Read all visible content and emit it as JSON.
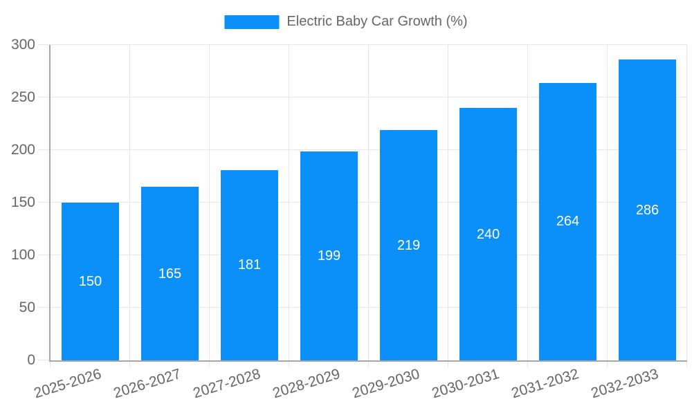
{
  "chart_data": {
    "type": "bar",
    "title": "Electric Baby Car Growth (%)",
    "legend": [
      "Electric Baby Car Growth (%)"
    ],
    "legend_position": "top",
    "categories": [
      "2025-2026",
      "2026-2027",
      "2027-2028",
      "2028-2029",
      "2029-2030",
      "2030-2031",
      "2031-2032",
      "2032-2033"
    ],
    "values": [
      150,
      165,
      181,
      199,
      219,
      240,
      264,
      286
    ],
    "xlabel": "",
    "ylabel": "",
    "ylim": [
      0,
      300
    ],
    "y_ticks": [
      0,
      50,
      100,
      150,
      200,
      250,
      300
    ],
    "grid": true,
    "x_label_rotation_deg": -17,
    "value_labels": "inside-center",
    "colors": {
      "bar": "#0a90f8",
      "value_label": "#ffffff",
      "axis_text": "#666666",
      "grid_line": "#e5e5e5",
      "axis_line": "#a6a6a6",
      "background": "#ffffff"
    }
  }
}
